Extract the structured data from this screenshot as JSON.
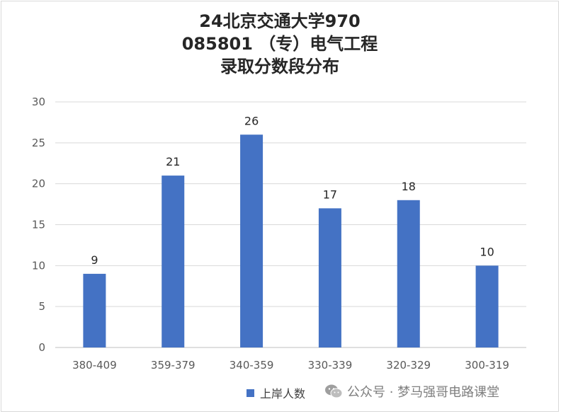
{
  "chart_data": {
    "type": "bar",
    "title_lines": [
      "24北京交通大学970",
      "085801 （专）电气工程",
      "录取分数段分布"
    ],
    "categories": [
      "380-409",
      "359-379",
      "340-359",
      "330-339",
      "320-329",
      "300-319"
    ],
    "series": [
      {
        "name": "上岸人数",
        "values": [
          9,
          21,
          26,
          17,
          18,
          10
        ],
        "color": "#4472c4"
      }
    ],
    "yticks": [
      0,
      5,
      10,
      15,
      20,
      25,
      30
    ],
    "ylim": [
      0,
      30
    ],
    "grid": true,
    "legend": "bottom"
  },
  "watermark": {
    "icon": "wechat-icon",
    "text": "公众号 · 梦马强哥电路课堂"
  }
}
